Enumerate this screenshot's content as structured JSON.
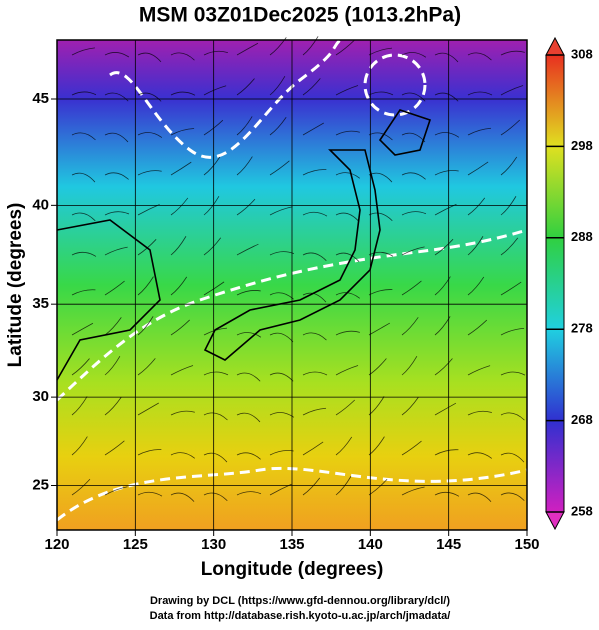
{
  "chart_data": {
    "type": "map",
    "title": "MSM 03Z01Dec2025 (1013.2hPa)",
    "xlabel": "Longitude (degrees)",
    "ylabel": "Latitude (degrees)",
    "xlim": [
      120,
      150
    ],
    "xticks": [
      120,
      125,
      130,
      135,
      140,
      145,
      150
    ],
    "ylim": [
      22.4,
      47.6
    ],
    "yticks": [
      25,
      30,
      35,
      40,
      45
    ],
    "grid": true,
    "colorbar": {
      "lim": [
        258,
        308
      ],
      "ticks": [
        258,
        268,
        278,
        288,
        298,
        308
      ]
    },
    "credits": [
      "Drawing by DCL (https://www.gfd-dennou.org/library/dcl/)",
      "Data from http://database.rish.kyoto-u.ac.jp/arch/jmadata/"
    ]
  }
}
